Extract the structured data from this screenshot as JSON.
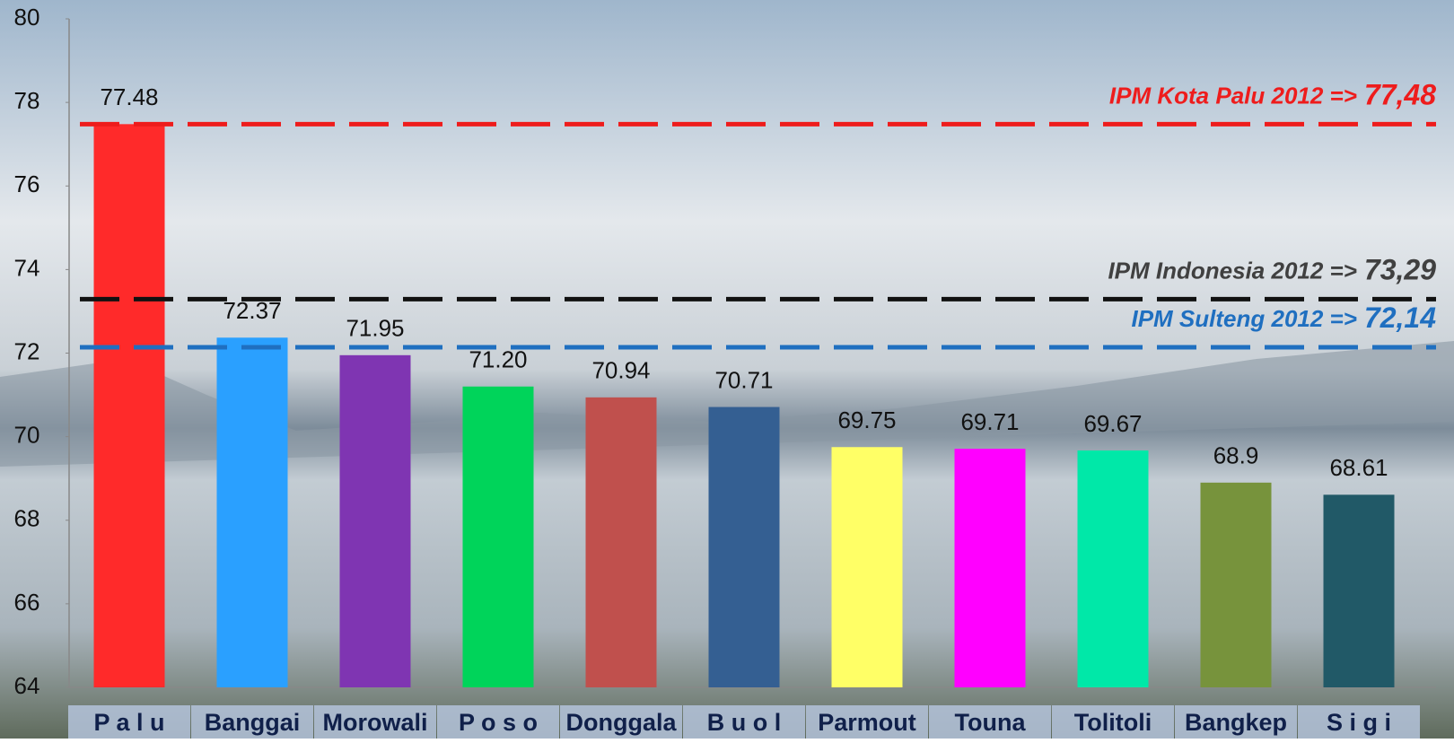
{
  "chart_data": {
    "type": "bar",
    "categories": [
      "P a l u",
      "Banggai",
      "Morowali",
      "P o s o",
      "Donggala",
      "B u o l",
      "Parmout",
      "Touna",
      "Tolitoli",
      "Bangkep",
      "S i g i"
    ],
    "values": [
      77.48,
      72.37,
      71.95,
      71.2,
      70.94,
      70.71,
      69.75,
      69.71,
      69.67,
      68.9,
      68.61
    ],
    "value_labels": [
      "77.48",
      "72.37",
      "71.95",
      "71.20",
      "70.94",
      "70.71",
      "69.75",
      "69.71",
      "69.67",
      "68.9",
      "68.61"
    ],
    "colors": [
      "#ff2a2a",
      "#2aa0ff",
      "#7f35b2",
      "#00d45a",
      "#c0504d",
      "#345f92",
      "#ffff66",
      "#ff00ff",
      "#00e8a8",
      "#77933c",
      "#215967"
    ],
    "ylim": [
      64,
      80
    ],
    "yticks": [
      64,
      66,
      68,
      70,
      72,
      74,
      76,
      78,
      80
    ],
    "reference_lines": [
      {
        "value": 77.48,
        "label": "IPM Kota Palu 2012 =>",
        "value_label": "77,48",
        "color": "#ee1c1c"
      },
      {
        "value": 73.29,
        "label": "IPM Indonesia 2012 =>",
        "value_label": "73,29",
        "color": "#111111",
        "text_color": "#404040"
      },
      {
        "value": 72.14,
        "label": "IPM Sulteng 2012 =>",
        "value_label": "72,14",
        "color": "#1f6fc0"
      }
    ]
  }
}
